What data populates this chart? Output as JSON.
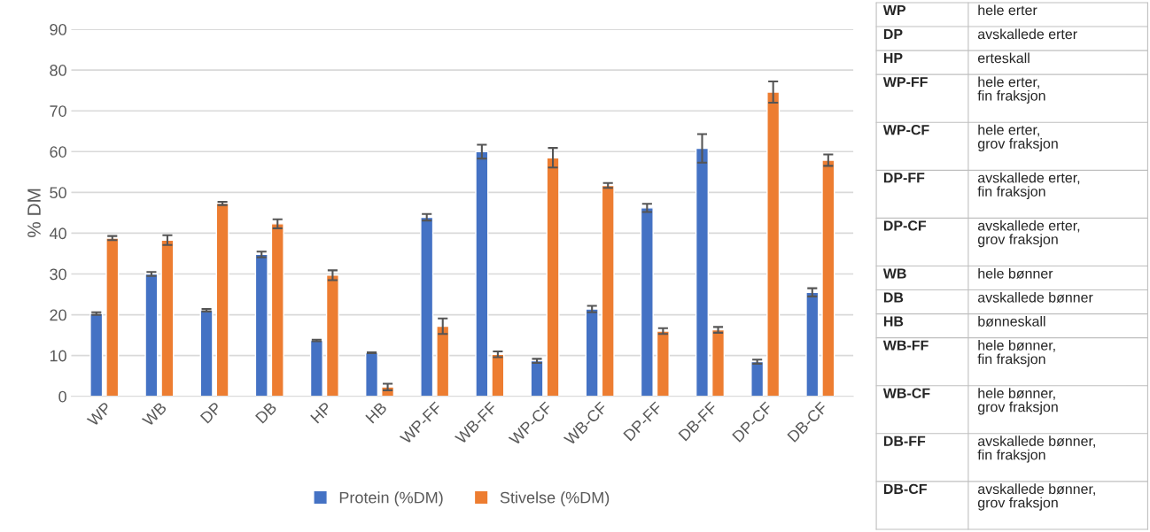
{
  "chart_data": {
    "type": "bar",
    "ylabel": "% DM",
    "categories": [
      "WP",
      "WB",
      "DP",
      "DB",
      "HP",
      "HB",
      "WP-FF",
      "WB-FF",
      "WP-CF",
      "WB-CF",
      "DP-FF",
      "DB-FF",
      "DP-CF",
      "DB-CF"
    ],
    "series": [
      {
        "name": "Protein (%DM)",
        "color": "#4472c4",
        "values": [
          20.3,
          30.0,
          21.1,
          34.8,
          13.7,
          10.7,
          43.9,
          60.0,
          8.7,
          21.4,
          46.2,
          60.8,
          8.5,
          25.5
        ],
        "errors": [
          0.3,
          0.5,
          0.3,
          0.7,
          0.2,
          0.1,
          0.8,
          1.7,
          0.5,
          0.8,
          1.0,
          3.5,
          0.5,
          1.0
        ]
      },
      {
        "name": "Stivelse (%DM)",
        "color": "#ed7d31",
        "values": [
          38.8,
          38.3,
          47.3,
          42.3,
          29.7,
          2.3,
          17.2,
          10.3,
          58.5,
          51.7,
          16.0,
          16.3,
          74.6,
          57.9
        ],
        "errors": [
          0.5,
          1.2,
          0.4,
          1.1,
          1.2,
          0.8,
          1.9,
          0.7,
          2.4,
          0.6,
          0.7,
          0.7,
          2.6,
          1.4
        ]
      }
    ],
    "ylim": [
      0,
      90
    ],
    "yticks": [
      0,
      10,
      20,
      30,
      40,
      50,
      60,
      70,
      80,
      90
    ],
    "grid": "y",
    "legend": "bottom",
    "annotations": [
      "WP",
      "hele erter",
      "DP",
      "avskallede erter",
      "HP",
      "erteskall",
      "WP-FF",
      "hele erter,\nfin fraksjon",
      "WP-CF",
      "hele erter,\ngrov fraksjon",
      "DP-FF",
      "avskallede erter,\nfin fraksjon",
      "DP-CF",
      "avskallede erter,\ngrov fraksjon",
      "WB",
      "hele bønner",
      "DB",
      "avskallede bønner",
      "HB",
      "bønneskall",
      "WB-FF",
      "hele bønner,\nfin fraksjon",
      "WB-CF",
      "hele bønner,\ngrov fraksjon",
      "DB-FF",
      "avskallede bønner,\nfin fraksjon",
      "DB-CF",
      "avskallede bønner,\ngrov fraksjon"
    ]
  }
}
